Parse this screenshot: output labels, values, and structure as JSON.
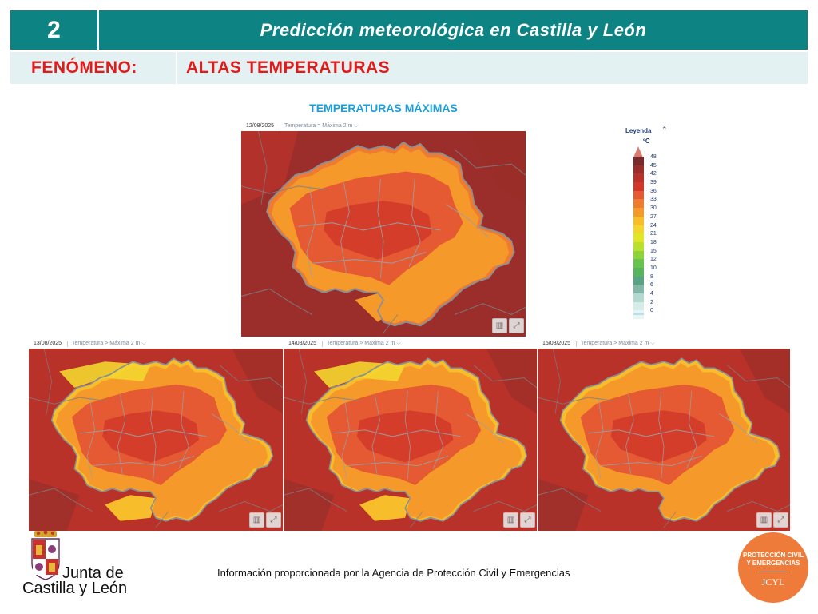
{
  "header": {
    "number": "2",
    "title": "Predicción meteorológica en Castilla y León"
  },
  "phenomenon": {
    "label": "FENÓMENO:",
    "value": "ALTAS TEMPERATURAS"
  },
  "chart_title": "TEMPERATURAS MÁXIMAS",
  "maps": [
    {
      "date": "12/08/2025",
      "variable": "Temperatura > Máxima 2 m"
    },
    {
      "date": "13/08/2025",
      "variable": "Temperatura > Máxima 2 m"
    },
    {
      "date": "14/08/2025",
      "variable": "Temperatura > Máxima 2 m"
    },
    {
      "date": "15/08/2025",
      "variable": "Temperatura > Máxima 2 m"
    }
  ],
  "legend": {
    "title": "Leyenda",
    "unit": "ºC",
    "labels": [
      "48",
      "45",
      "42",
      "39",
      "36",
      "33",
      "30",
      "27",
      "24",
      "21",
      "18",
      "15",
      "12",
      "10",
      "8",
      "6",
      "4",
      "2",
      "0"
    ],
    "colors": [
      "#7a2a2a",
      "#9b2e2a",
      "#b8322a",
      "#d2382a",
      "#e55a32",
      "#ef7b31",
      "#f59a2a",
      "#f8bd2b",
      "#f3d62d",
      "#e2e629",
      "#b9e02c",
      "#8fd33a",
      "#68c44c",
      "#58b55e",
      "#5aa284",
      "#82b8a8",
      "#b3d8d0",
      "#d5ece8",
      "#e7f6f2"
    ]
  },
  "footer": {
    "brand_line1": "Junta de",
    "brand_line2": "Castilla y León",
    "info": "Información proporcionada por la Agencia de Protección Civil y Emergencias",
    "badge_line1": "PROTECCIÓN CIVIL",
    "badge_line2": "Y EMERGENCIAS",
    "badge_line3": "JCYL"
  }
}
